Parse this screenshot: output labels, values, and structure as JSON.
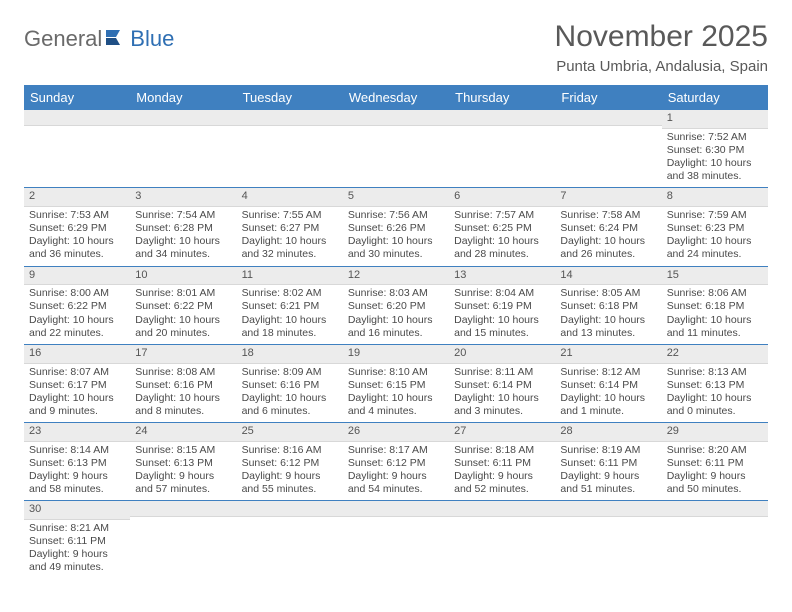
{
  "logo": {
    "part1": "General",
    "part2": "Blue",
    "brand_color": "#2f6fb3",
    "text_color": "#6a6a6a"
  },
  "title": "November 2025",
  "location": "Punta Umbria, Andalusia, Spain",
  "header_bg": "#3f80c0",
  "header_fg": "#ffffff",
  "daynum_bg": "#ececec",
  "row_border": "#3f80c0",
  "weekdays": [
    "Sunday",
    "Monday",
    "Tuesday",
    "Wednesday",
    "Thursday",
    "Friday",
    "Saturday"
  ],
  "weeks": [
    [
      {
        "n": "",
        "r": "",
        "s": "",
        "d": ""
      },
      {
        "n": "",
        "r": "",
        "s": "",
        "d": ""
      },
      {
        "n": "",
        "r": "",
        "s": "",
        "d": ""
      },
      {
        "n": "",
        "r": "",
        "s": "",
        "d": ""
      },
      {
        "n": "",
        "r": "",
        "s": "",
        "d": ""
      },
      {
        "n": "",
        "r": "",
        "s": "",
        "d": ""
      },
      {
        "n": "1",
        "r": "Sunrise: 7:52 AM",
        "s": "Sunset: 6:30 PM",
        "d": "Daylight: 10 hours and 38 minutes."
      }
    ],
    [
      {
        "n": "2",
        "r": "Sunrise: 7:53 AM",
        "s": "Sunset: 6:29 PM",
        "d": "Daylight: 10 hours and 36 minutes."
      },
      {
        "n": "3",
        "r": "Sunrise: 7:54 AM",
        "s": "Sunset: 6:28 PM",
        "d": "Daylight: 10 hours and 34 minutes."
      },
      {
        "n": "4",
        "r": "Sunrise: 7:55 AM",
        "s": "Sunset: 6:27 PM",
        "d": "Daylight: 10 hours and 32 minutes."
      },
      {
        "n": "5",
        "r": "Sunrise: 7:56 AM",
        "s": "Sunset: 6:26 PM",
        "d": "Daylight: 10 hours and 30 minutes."
      },
      {
        "n": "6",
        "r": "Sunrise: 7:57 AM",
        "s": "Sunset: 6:25 PM",
        "d": "Daylight: 10 hours and 28 minutes."
      },
      {
        "n": "7",
        "r": "Sunrise: 7:58 AM",
        "s": "Sunset: 6:24 PM",
        "d": "Daylight: 10 hours and 26 minutes."
      },
      {
        "n": "8",
        "r": "Sunrise: 7:59 AM",
        "s": "Sunset: 6:23 PM",
        "d": "Daylight: 10 hours and 24 minutes."
      }
    ],
    [
      {
        "n": "9",
        "r": "Sunrise: 8:00 AM",
        "s": "Sunset: 6:22 PM",
        "d": "Daylight: 10 hours and 22 minutes."
      },
      {
        "n": "10",
        "r": "Sunrise: 8:01 AM",
        "s": "Sunset: 6:22 PM",
        "d": "Daylight: 10 hours and 20 minutes."
      },
      {
        "n": "11",
        "r": "Sunrise: 8:02 AM",
        "s": "Sunset: 6:21 PM",
        "d": "Daylight: 10 hours and 18 minutes."
      },
      {
        "n": "12",
        "r": "Sunrise: 8:03 AM",
        "s": "Sunset: 6:20 PM",
        "d": "Daylight: 10 hours and 16 minutes."
      },
      {
        "n": "13",
        "r": "Sunrise: 8:04 AM",
        "s": "Sunset: 6:19 PM",
        "d": "Daylight: 10 hours and 15 minutes."
      },
      {
        "n": "14",
        "r": "Sunrise: 8:05 AM",
        "s": "Sunset: 6:18 PM",
        "d": "Daylight: 10 hours and 13 minutes."
      },
      {
        "n": "15",
        "r": "Sunrise: 8:06 AM",
        "s": "Sunset: 6:18 PM",
        "d": "Daylight: 10 hours and 11 minutes."
      }
    ],
    [
      {
        "n": "16",
        "r": "Sunrise: 8:07 AM",
        "s": "Sunset: 6:17 PM",
        "d": "Daylight: 10 hours and 9 minutes."
      },
      {
        "n": "17",
        "r": "Sunrise: 8:08 AM",
        "s": "Sunset: 6:16 PM",
        "d": "Daylight: 10 hours and 8 minutes."
      },
      {
        "n": "18",
        "r": "Sunrise: 8:09 AM",
        "s": "Sunset: 6:16 PM",
        "d": "Daylight: 10 hours and 6 minutes."
      },
      {
        "n": "19",
        "r": "Sunrise: 8:10 AM",
        "s": "Sunset: 6:15 PM",
        "d": "Daylight: 10 hours and 4 minutes."
      },
      {
        "n": "20",
        "r": "Sunrise: 8:11 AM",
        "s": "Sunset: 6:14 PM",
        "d": "Daylight: 10 hours and 3 minutes."
      },
      {
        "n": "21",
        "r": "Sunrise: 8:12 AM",
        "s": "Sunset: 6:14 PM",
        "d": "Daylight: 10 hours and 1 minute."
      },
      {
        "n": "22",
        "r": "Sunrise: 8:13 AM",
        "s": "Sunset: 6:13 PM",
        "d": "Daylight: 10 hours and 0 minutes."
      }
    ],
    [
      {
        "n": "23",
        "r": "Sunrise: 8:14 AM",
        "s": "Sunset: 6:13 PM",
        "d": "Daylight: 9 hours and 58 minutes."
      },
      {
        "n": "24",
        "r": "Sunrise: 8:15 AM",
        "s": "Sunset: 6:13 PM",
        "d": "Daylight: 9 hours and 57 minutes."
      },
      {
        "n": "25",
        "r": "Sunrise: 8:16 AM",
        "s": "Sunset: 6:12 PM",
        "d": "Daylight: 9 hours and 55 minutes."
      },
      {
        "n": "26",
        "r": "Sunrise: 8:17 AM",
        "s": "Sunset: 6:12 PM",
        "d": "Daylight: 9 hours and 54 minutes."
      },
      {
        "n": "27",
        "r": "Sunrise: 8:18 AM",
        "s": "Sunset: 6:11 PM",
        "d": "Daylight: 9 hours and 52 minutes."
      },
      {
        "n": "28",
        "r": "Sunrise: 8:19 AM",
        "s": "Sunset: 6:11 PM",
        "d": "Daylight: 9 hours and 51 minutes."
      },
      {
        "n": "29",
        "r": "Sunrise: 8:20 AM",
        "s": "Sunset: 6:11 PM",
        "d": "Daylight: 9 hours and 50 minutes."
      }
    ],
    [
      {
        "n": "30",
        "r": "Sunrise: 8:21 AM",
        "s": "Sunset: 6:11 PM",
        "d": "Daylight: 9 hours and 49 minutes."
      },
      {
        "n": "",
        "r": "",
        "s": "",
        "d": ""
      },
      {
        "n": "",
        "r": "",
        "s": "",
        "d": ""
      },
      {
        "n": "",
        "r": "",
        "s": "",
        "d": ""
      },
      {
        "n": "",
        "r": "",
        "s": "",
        "d": ""
      },
      {
        "n": "",
        "r": "",
        "s": "",
        "d": ""
      },
      {
        "n": "",
        "r": "",
        "s": "",
        "d": ""
      }
    ]
  ]
}
